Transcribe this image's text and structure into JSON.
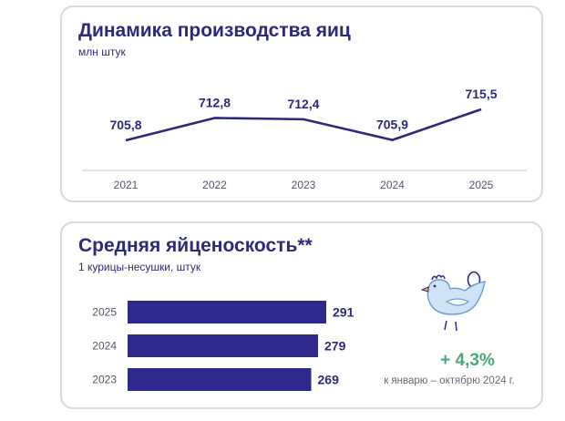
{
  "production": {
    "title": "Динамика производства яиц",
    "subtitle": "млн штук"
  },
  "yield": {
    "title": "Средняя яйценоскость**",
    "subtitle": "1 курицы-несушки, штук",
    "growth": "+ 4,3%",
    "growth_note": "к январю – октябрю 2024 г."
  },
  "icons": {
    "hen": "hen-with-egg-icon"
  },
  "colors": {
    "line": "#2d2a7a",
    "bar": "#2d2a8c",
    "growth": "#4aa87a"
  },
  "chart_data": [
    {
      "type": "line",
      "title": "Динамика производства яиц",
      "ylabel": "млн штук",
      "categories": [
        "2021",
        "2022",
        "2023",
        "2024",
        "2025"
      ],
      "values": [
        705.8,
        712.8,
        712.4,
        705.9,
        715.5
      ],
      "value_labels": [
        "705,8",
        "712,8",
        "712,4",
        "705,9",
        "715,5"
      ],
      "ylim": [
        704,
        717
      ],
      "grid": false
    },
    {
      "type": "bar",
      "orientation": "horizontal",
      "title": "Средняя яйценоскость**",
      "xlabel": "1 курицы-несушки, штук",
      "categories": [
        "2025",
        "2024",
        "2023"
      ],
      "values": [
        291,
        279,
        269
      ],
      "value_labels": [
        "291",
        "279",
        "269"
      ],
      "xlim": [
        0,
        291
      ]
    }
  ]
}
